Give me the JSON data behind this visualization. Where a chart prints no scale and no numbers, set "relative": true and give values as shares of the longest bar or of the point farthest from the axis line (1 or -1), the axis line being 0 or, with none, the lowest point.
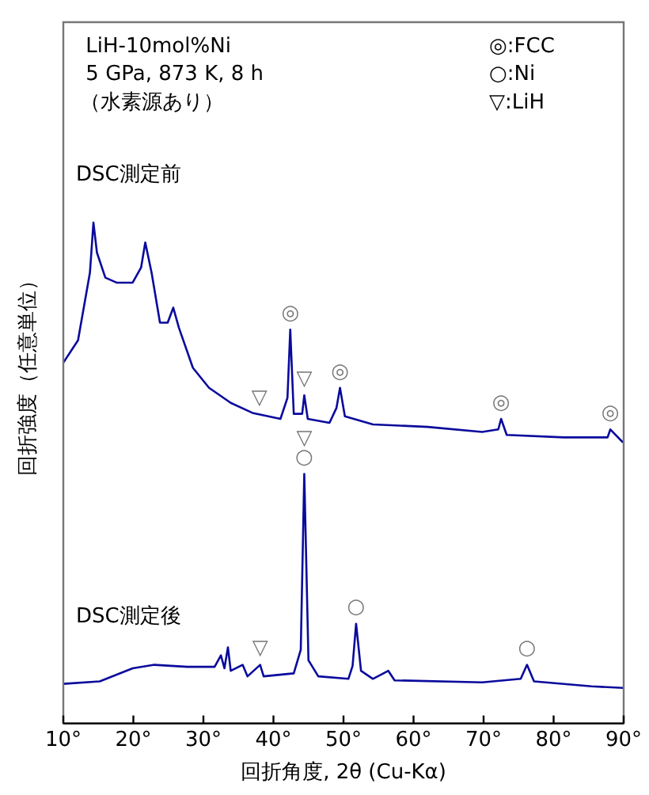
{
  "chart_data": {
    "type": "line",
    "relative": true,
    "xlabel": "回折角度, 2θ (Cu-Kα)",
    "ylabel": "回折強度（任意単位）",
    "xlim": [
      10,
      90
    ],
    "xticks": [
      {
        "value": 10,
        "label": "10°"
      },
      {
        "value": 20,
        "label": "20°"
      },
      {
        "value": 30,
        "label": "30°"
      },
      {
        "value": 40,
        "label": "40°"
      },
      {
        "value": 50,
        "label": "50°"
      },
      {
        "value": 60,
        "label": "60°"
      },
      {
        "value": 70,
        "label": "70°"
      },
      {
        "value": 80,
        "label": "80°"
      },
      {
        "value": 90,
        "label": "90°"
      }
    ],
    "grid": false,
    "legend": false,
    "marker": "none",
    "series": [
      {
        "name": "DSC測定前",
        "color": "#0a0a9c",
        "x": [
          10,
          12.1,
          13.8,
          14.3,
          14.8,
          16.0,
          17.6,
          19.9,
          21.1,
          21.7,
          22.6,
          23.8,
          24.9,
          25.7,
          26.5,
          28.5,
          30.8,
          33.9,
          37.0,
          41.0,
          42.0,
          42.4,
          42.9,
          44.1,
          44.4,
          44.9,
          48.0,
          49.0,
          49.5,
          50.2,
          54.2,
          62.0,
          69.8,
          72.1,
          72.5,
          73.3,
          81.5,
          87.7,
          88.1,
          89.9
        ],
        "values": [
          0.72,
          0.765,
          0.9,
          1.0,
          0.94,
          0.89,
          0.88,
          0.88,
          0.91,
          0.96,
          0.9,
          0.8,
          0.8,
          0.83,
          0.79,
          0.71,
          0.67,
          0.64,
          0.62,
          0.608,
          0.65,
          0.786,
          0.618,
          0.618,
          0.655,
          0.608,
          0.6,
          0.63,
          0.67,
          0.613,
          0.597,
          0.592,
          0.582,
          0.587,
          0.608,
          0.576,
          0.571,
          0.571,
          0.587,
          0.561
        ]
      },
      {
        "name": "DSC測定後",
        "color": "#0a0a9c",
        "x": [
          10.0,
          15.2,
          19.9,
          23.0,
          27.7,
          31.6,
          32.5,
          33.0,
          33.5,
          33.9,
          35.6,
          36.3,
          38.1,
          38.6,
          42.9,
          43.9,
          44.4,
          45.0,
          46.4,
          50.7,
          51.3,
          51.8,
          52.5,
          54.2,
          56.4,
          57.3,
          69.8,
          75.3,
          76.2,
          77.2,
          85.4,
          89.9
        ],
        "values": [
          0.079,
          0.084,
          0.11,
          0.117,
          0.113,
          0.113,
          0.136,
          0.11,
          0.152,
          0.105,
          0.117,
          0.094,
          0.117,
          0.094,
          0.1,
          0.147,
          0.498,
          0.126,
          0.094,
          0.089,
          0.115,
          0.199,
          0.105,
          0.089,
          0.105,
          0.086,
          0.082,
          0.089,
          0.117,
          0.084,
          0.074,
          0.071
        ]
      }
    ],
    "annotations": [
      "LiH-10mol%Ni",
      "5 GPa, 873 K, 8 h",
      "（水素源あり）",
      "◎:FCC",
      "○:Ni",
      "▽:LiH",
      {
        "text": "◎",
        "x": 42.4,
        "y": 0.786
      },
      {
        "text": "◎",
        "x": 49.5,
        "y": 0.67
      },
      {
        "text": "◎",
        "x": 72.5,
        "y": 0.608
      },
      {
        "text": "◎",
        "x": 88.1,
        "y": 0.587
      },
      {
        "text": "▽",
        "x": 38.0,
        "y": 0.617
      },
      {
        "text": "▽",
        "x": 44.4,
        "y": 0.655
      },
      {
        "text": "○",
        "x": 44.4,
        "y": 0.498
      },
      {
        "text": "▽",
        "x": 44.4,
        "y": 0.498
      },
      {
        "text": "○",
        "x": 51.8,
        "y": 0.199
      },
      {
        "text": "○",
        "x": 76.2,
        "y": 0.117
      },
      {
        "text": "▽",
        "x": 38.1,
        "y": 0.117
      }
    ]
  }
}
